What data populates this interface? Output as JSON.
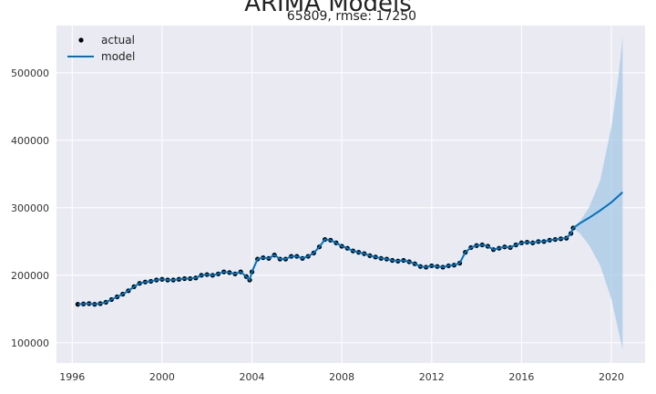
{
  "chart_data": {
    "type": "line",
    "title": "ARIMA Models",
    "subtitle": "65809, rmse: 17250",
    "xlabel": "",
    "ylabel": "",
    "xlim": [
      1995.3,
      2021.5
    ],
    "ylim": [
      70000,
      570000
    ],
    "x_ticks": [
      1996,
      2000,
      2004,
      2008,
      2012,
      2016,
      2020
    ],
    "y_ticks": [
      100000,
      200000,
      300000,
      400000,
      500000
    ],
    "grid": true,
    "legend_position": "top-left",
    "series": [
      {
        "name": "actual",
        "style": "points",
        "color": "#000000",
        "points": [
          [
            1996.25,
            157000
          ],
          [
            1996.5,
            157500
          ],
          [
            1996.75,
            158000
          ],
          [
            1997.0,
            157000
          ],
          [
            1997.25,
            158000
          ],
          [
            1997.5,
            160000
          ],
          [
            1997.75,
            164000
          ],
          [
            1998.0,
            168000
          ],
          [
            1998.25,
            172000
          ],
          [
            1998.5,
            177000
          ],
          [
            1998.75,
            183000
          ],
          [
            1999.0,
            188000
          ],
          [
            1999.25,
            190000
          ],
          [
            1999.5,
            191000
          ],
          [
            1999.75,
            193000
          ],
          [
            2000.0,
            194000
          ],
          [
            2000.25,
            193000
          ],
          [
            2000.5,
            193000
          ],
          [
            2000.75,
            194000
          ],
          [
            2001.0,
            195000
          ],
          [
            2001.25,
            195000
          ],
          [
            2001.5,
            196000
          ],
          [
            2001.75,
            200000
          ],
          [
            2002.0,
            201000
          ],
          [
            2002.25,
            200000
          ],
          [
            2002.5,
            202000
          ],
          [
            2002.75,
            205000
          ],
          [
            2003.0,
            204000
          ],
          [
            2003.25,
            202000
          ],
          [
            2003.5,
            205000
          ],
          [
            2003.75,
            198000
          ],
          [
            2003.9,
            193000
          ],
          [
            2004.0,
            205000
          ],
          [
            2004.25,
            224000
          ],
          [
            2004.5,
            226000
          ],
          [
            2004.75,
            225000
          ],
          [
            2005.0,
            230000
          ],
          [
            2005.25,
            224000
          ],
          [
            2005.5,
            224000
          ],
          [
            2005.75,
            228000
          ],
          [
            2006.0,
            228000
          ],
          [
            2006.25,
            225000
          ],
          [
            2006.5,
            228000
          ],
          [
            2006.75,
            233000
          ],
          [
            2007.0,
            242000
          ],
          [
            2007.25,
            253000
          ],
          [
            2007.5,
            252000
          ],
          [
            2007.75,
            248000
          ],
          [
            2008.0,
            243000
          ],
          [
            2008.25,
            240000
          ],
          [
            2008.5,
            236000
          ],
          [
            2008.75,
            234000
          ],
          [
            2009.0,
            232000
          ],
          [
            2009.25,
            229000
          ],
          [
            2009.5,
            227000
          ],
          [
            2009.75,
            225000
          ],
          [
            2010.0,
            224000
          ],
          [
            2010.25,
            222000
          ],
          [
            2010.5,
            221000
          ],
          [
            2010.75,
            222000
          ],
          [
            2011.0,
            220000
          ],
          [
            2011.25,
            217000
          ],
          [
            2011.5,
            213000
          ],
          [
            2011.75,
            212000
          ],
          [
            2012.0,
            214000
          ],
          [
            2012.25,
            213000
          ],
          [
            2012.5,
            212000
          ],
          [
            2012.75,
            214000
          ],
          [
            2013.0,
            215000
          ],
          [
            2013.25,
            218000
          ],
          [
            2013.5,
            234000
          ],
          [
            2013.75,
            241000
          ],
          [
            2014.0,
            244000
          ],
          [
            2014.25,
            245000
          ],
          [
            2014.5,
            243000
          ],
          [
            2014.75,
            238000
          ],
          [
            2015.0,
            240000
          ],
          [
            2015.25,
            242000
          ],
          [
            2015.5,
            241000
          ],
          [
            2015.75,
            245000
          ],
          [
            2016.0,
            248000
          ],
          [
            2016.25,
            249000
          ],
          [
            2016.5,
            248000
          ],
          [
            2016.75,
            250000
          ],
          [
            2017.0,
            250000
          ],
          [
            2017.25,
            252000
          ],
          [
            2017.5,
            253000
          ],
          [
            2017.75,
            254000
          ],
          [
            2018.0,
            255000
          ],
          [
            2018.2,
            262000
          ],
          [
            2018.3,
            270000
          ]
        ]
      },
      {
        "name": "model",
        "style": "line",
        "color": "#0072bd",
        "points": [
          [
            1996.25,
            157000
          ],
          [
            1996.5,
            157500
          ],
          [
            1996.75,
            158000
          ],
          [
            1997.0,
            157000
          ],
          [
            1997.25,
            158000
          ],
          [
            1997.5,
            160000
          ],
          [
            1997.75,
            164000
          ],
          [
            1998.0,
            168000
          ],
          [
            1998.25,
            172000
          ],
          [
            1998.5,
            177000
          ],
          [
            1998.75,
            183000
          ],
          [
            1999.0,
            188000
          ],
          [
            1999.25,
            190000
          ],
          [
            1999.5,
            191000
          ],
          [
            1999.75,
            193000
          ],
          [
            2000.0,
            194000
          ],
          [
            2000.25,
            193000
          ],
          [
            2000.5,
            193000
          ],
          [
            2000.75,
            194000
          ],
          [
            2001.0,
            195000
          ],
          [
            2001.25,
            195000
          ],
          [
            2001.5,
            196000
          ],
          [
            2001.75,
            200000
          ],
          [
            2002.0,
            201000
          ],
          [
            2002.25,
            200000
          ],
          [
            2002.5,
            202000
          ],
          [
            2002.75,
            205000
          ],
          [
            2003.0,
            204000
          ],
          [
            2003.25,
            202000
          ],
          [
            2003.5,
            205000
          ],
          [
            2003.75,
            198000
          ],
          [
            2003.9,
            193000
          ],
          [
            2004.0,
            205000
          ],
          [
            2004.25,
            224000
          ],
          [
            2004.5,
            226000
          ],
          [
            2004.75,
            225000
          ],
          [
            2005.0,
            230000
          ],
          [
            2005.25,
            224000
          ],
          [
            2005.5,
            224000
          ],
          [
            2005.75,
            228000
          ],
          [
            2006.0,
            228000
          ],
          [
            2006.25,
            225000
          ],
          [
            2006.5,
            228000
          ],
          [
            2006.75,
            233000
          ],
          [
            2007.0,
            242000
          ],
          [
            2007.25,
            253000
          ],
          [
            2007.5,
            252000
          ],
          [
            2007.75,
            248000
          ],
          [
            2008.0,
            243000
          ],
          [
            2008.25,
            240000
          ],
          [
            2008.5,
            236000
          ],
          [
            2008.75,
            234000
          ],
          [
            2009.0,
            232000
          ],
          [
            2009.25,
            229000
          ],
          [
            2009.5,
            227000
          ],
          [
            2009.75,
            225000
          ],
          [
            2010.0,
            224000
          ],
          [
            2010.25,
            222000
          ],
          [
            2010.5,
            221000
          ],
          [
            2010.75,
            222000
          ],
          [
            2011.0,
            220000
          ],
          [
            2011.25,
            217000
          ],
          [
            2011.5,
            213000
          ],
          [
            2011.75,
            212000
          ],
          [
            2012.0,
            214000
          ],
          [
            2012.25,
            213000
          ],
          [
            2012.5,
            212000
          ],
          [
            2012.75,
            214000
          ],
          [
            2013.0,
            215000
          ],
          [
            2013.25,
            218000
          ],
          [
            2013.5,
            234000
          ],
          [
            2013.75,
            241000
          ],
          [
            2014.0,
            244000
          ],
          [
            2014.25,
            245000
          ],
          [
            2014.5,
            243000
          ],
          [
            2014.75,
            238000
          ],
          [
            2015.0,
            240000
          ],
          [
            2015.25,
            242000
          ],
          [
            2015.5,
            241000
          ],
          [
            2015.75,
            245000
          ],
          [
            2016.0,
            248000
          ],
          [
            2016.25,
            249000
          ],
          [
            2016.5,
            248000
          ],
          [
            2016.75,
            250000
          ],
          [
            2017.0,
            250000
          ],
          [
            2017.25,
            252000
          ],
          [
            2017.5,
            253000
          ],
          [
            2017.75,
            254000
          ],
          [
            2018.0,
            255000
          ],
          [
            2018.2,
            262000
          ],
          [
            2018.3,
            270000
          ],
          [
            2018.6,
            277000
          ],
          [
            2019.0,
            285000
          ],
          [
            2019.5,
            296000
          ],
          [
            2020.0,
            308000
          ],
          [
            2020.3,
            317000
          ],
          [
            2020.5,
            323000
          ]
        ]
      }
    ],
    "confidence_band": {
      "color": "#a6c8e6",
      "points": [
        [
          2018.3,
          270000,
          270000
        ],
        [
          2018.6,
          280000,
          262000
        ],
        [
          2019.0,
          300000,
          245000
        ],
        [
          2019.5,
          340000,
          215000
        ],
        [
          2020.0,
          420000,
          165000
        ],
        [
          2020.3,
          490000,
          120000
        ],
        [
          2020.5,
          553000,
          90000
        ]
      ]
    }
  }
}
